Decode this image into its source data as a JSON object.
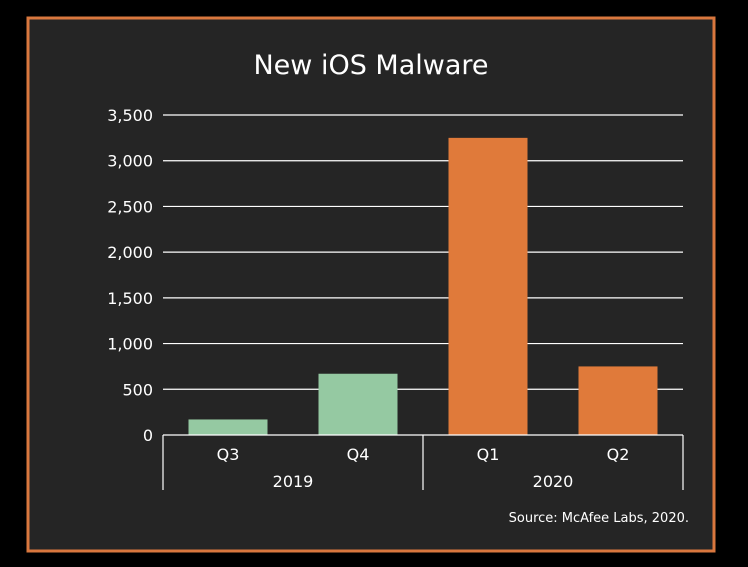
{
  "colors": {
    "background": "#252525",
    "page": "#000000",
    "frame": "#d9773e",
    "text": "#ffffff",
    "grid": "#ffffff",
    "series_2019": "#95c9a2",
    "series_2020": "#e07a3a"
  },
  "chart_data": {
    "type": "bar",
    "title": "New iOS Malware",
    "xlabel": "",
    "ylabel": "",
    "categories": [
      "Q3",
      "Q4",
      "Q1",
      "Q2"
    ],
    "groups": [
      {
        "label": "2019",
        "categories": [
          "Q3",
          "Q4"
        ]
      },
      {
        "label": "2020",
        "categories": [
          "Q1",
          "Q2"
        ]
      }
    ],
    "values": [
      170,
      670,
      3250,
      750
    ],
    "bar_colors": [
      "#95c9a2",
      "#95c9a2",
      "#e07a3a",
      "#e07a3a"
    ],
    "ylim": [
      0,
      3500
    ],
    "yticks": [
      0,
      500,
      1000,
      1500,
      2000,
      2500,
      3000,
      3500
    ],
    "ytick_labels": [
      "0",
      "500",
      "1,000",
      "1,500",
      "2,000",
      "2,500",
      "3,000",
      "3,500"
    ],
    "grid": true,
    "legend": "none",
    "source": "Source: McAfee Labs, 2020."
  }
}
